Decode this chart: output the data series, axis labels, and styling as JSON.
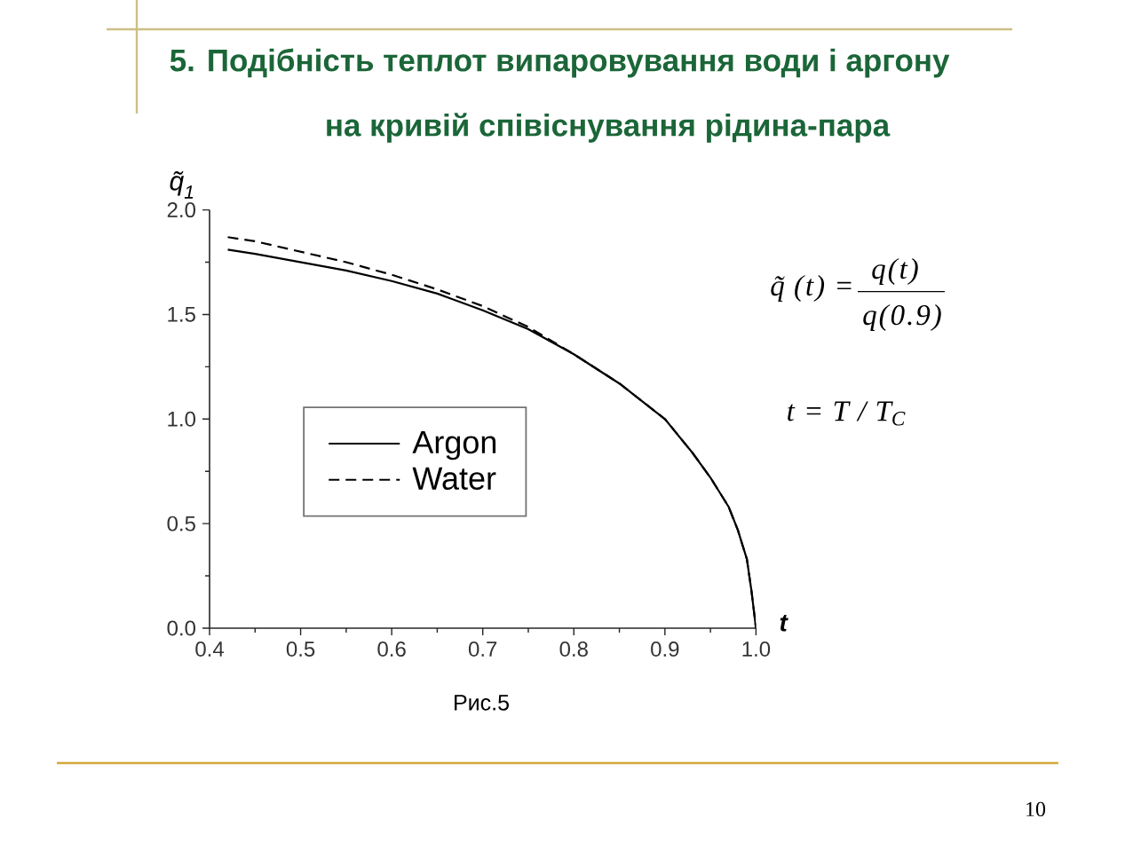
{
  "chart_data": {
    "type": "line",
    "title": "5. Подібність теплот випаровування води і аргону",
    "subtitle": "на кривій співіснування рідина-пара",
    "xlabel": "t",
    "ylabel": "q̃$_{1}$",
    "annotations": [
      "q̃ (t) =",
      "q(t)",
      "q(0.9)",
      "t = T / T$_{C}$",
      "Рис.5",
      "10"
    ],
    "x": [
      0.42,
      0.45,
      0.5,
      0.55,
      0.6,
      0.65,
      0.7,
      0.75,
      0.8,
      0.85,
      0.9,
      0.93,
      0.95,
      0.97,
      0.98,
      0.99,
      0.995,
      1.0
    ],
    "series": [
      {
        "name": "Argon",
        "color": "#000000",
        "line_style": "solid",
        "values": [
          1.81,
          1.79,
          1.75,
          1.71,
          1.66,
          1.6,
          1.52,
          1.43,
          1.31,
          1.17,
          1.0,
          0.84,
          0.72,
          0.58,
          0.47,
          0.33,
          0.18,
          0
        ]
      },
      {
        "name": "Water",
        "color": "#000000",
        "line_style": "dashed",
        "values": [
          1.87,
          1.85,
          1.8,
          1.75,
          1.69,
          1.62,
          1.54,
          1.44,
          1.31,
          1.17,
          1.0,
          0.84,
          0.72,
          0.58,
          0.47,
          0.33,
          0.18,
          0
        ]
      }
    ],
    "xlim": [
      0.4,
      1.0
    ],
    "xticks": [
      0.4,
      0.5,
      0.6,
      0.7,
      0.8,
      0.9,
      {
        "value": 1,
        "label": "1.0"
      }
    ],
    "ylim": [
      0,
      2
    ],
    "yticks": [
      {
        "value": 0,
        "label": "0.0"
      },
      0.5,
      {
        "value": 1,
        "label": "1.0"
      },
      1.5,
      {
        "value": 2,
        "label": "2.0"
      }
    ],
    "legend": "center left",
    "marker": "none"
  }
}
